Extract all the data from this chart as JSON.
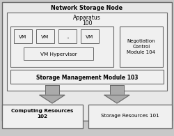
{
  "title": "Network Storage Node",
  "fig_bg": "#c8c8c8",
  "outer_bg": "#e8e8e8",
  "white_fill": "#f0f0f0",
  "box_edge": "#666666",
  "apparatus_label": "Apparatus",
  "apparatus_num": "100",
  "neg_label": "Negotiation\nControl\nModule 104",
  "vm_hypervisor_label": "VM Hypervisor",
  "smm_label": "Storage Management Module 103",
  "compute_label": "Computing Resources\n102",
  "storage_label": "Storage Resources 101",
  "vm_labels": [
    "VM",
    "VM",
    "..",
    "VM"
  ],
  "arrow_fill": "#aaaaaa",
  "arrow_edge": "#666666"
}
